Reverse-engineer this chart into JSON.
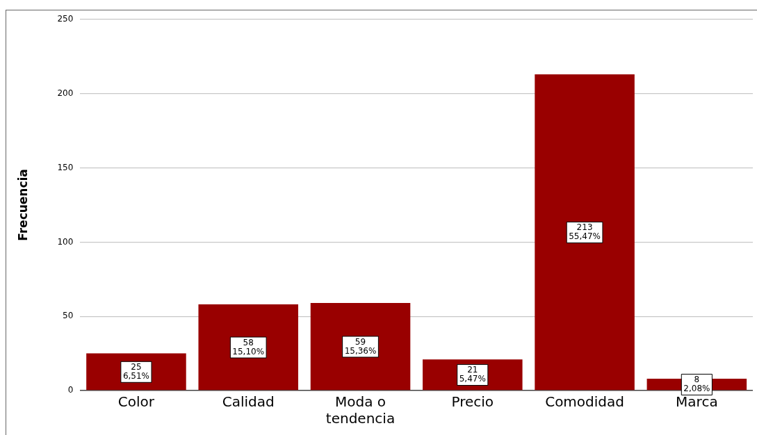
{
  "chart_data": {
    "type": "bar",
    "ylabel": "Frecuencia",
    "categories": [
      "Color",
      "Calidad",
      "Moda o tendencia",
      "Precio",
      "Comodidad",
      "Marca"
    ],
    "values": [
      25,
      58,
      59,
      21,
      213,
      8
    ],
    "color": "#990000",
    "value_labels": [
      "25\n6,51%",
      "58\n15,10%",
      "59\n15,36%",
      "21\n5,47%",
      "213\n55,47%",
      "8\n2,08%"
    ],
    "ylim": [
      0,
      250
    ],
    "yticks": [
      0,
      50,
      100,
      150,
      200,
      250
    ],
    "grid": "y",
    "legend": false
  }
}
